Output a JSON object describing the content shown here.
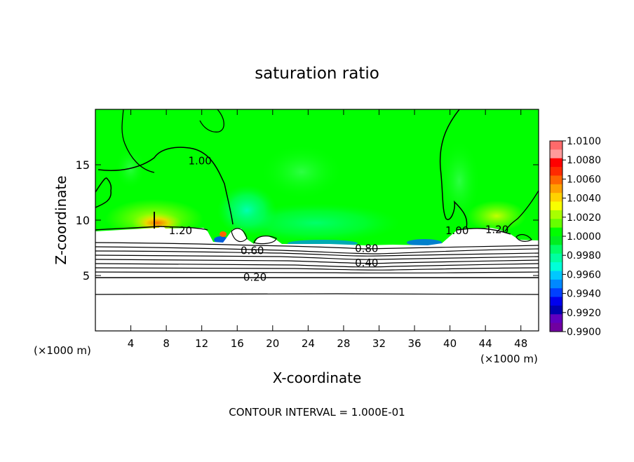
{
  "chart_data": {
    "type": "heatmap",
    "title": "saturation ratio",
    "xlabel": "X-coordinate",
    "ylabel": "Z-coordinate",
    "x_unit_left": "(×1000 m)",
    "x_unit_right": "(×1000 m)",
    "xlim": [
      0,
      50
    ],
    "ylim": [
      0,
      20
    ],
    "x_ticks": [
      4,
      8,
      12,
      16,
      20,
      24,
      28,
      32,
      36,
      40,
      44,
      48
    ],
    "y_ticks": [
      5,
      10,
      15
    ],
    "footer": "CONTOUR INTERVAL = 1.000E-01",
    "colorbar": {
      "min": 0.99,
      "max": 1.01,
      "labels": [
        "1.0100",
        "1.0080",
        "1.0060",
        "1.0040",
        "1.0020",
        "1.0000",
        "0.9980",
        "0.9960",
        "0.9940",
        "0.9920",
        "0.9900"
      ],
      "colors": [
        "#ff6a6a",
        "#ff9a9a",
        "#ff0000",
        "#ff2a00",
        "#ff6600",
        "#ffa000",
        "#ffd200",
        "#f8ff00",
        "#a8ff00",
        "#66ff00",
        "#00ff00",
        "#00ee20",
        "#00ff66",
        "#00ffa0",
        "#00ffd8",
        "#00c8ff",
        "#0088ff",
        "#0040ff",
        "#0000ee",
        "#0000b0",
        "#6000c0",
        "#7000a0"
      ]
    },
    "contour_labels": [
      {
        "text": "1.00",
        "x": 11.8,
        "z": 15.4
      },
      {
        "text": "1.20",
        "x": 9.6,
        "z": 9.1
      },
      {
        "text": "0.60",
        "x": 17.7,
        "z": 7.3
      },
      {
        "text": "0.20",
        "x": 18.0,
        "z": 4.9
      },
      {
        "text": "0.80",
        "x": 30.6,
        "z": 7.5
      },
      {
        "text": "0.40",
        "x": 30.6,
        "z": 6.2
      },
      {
        "text": "1.00",
        "x": 40.8,
        "z": 9.1
      },
      {
        "text": "1.20",
        "x": 45.3,
        "z": 9.2
      }
    ]
  }
}
